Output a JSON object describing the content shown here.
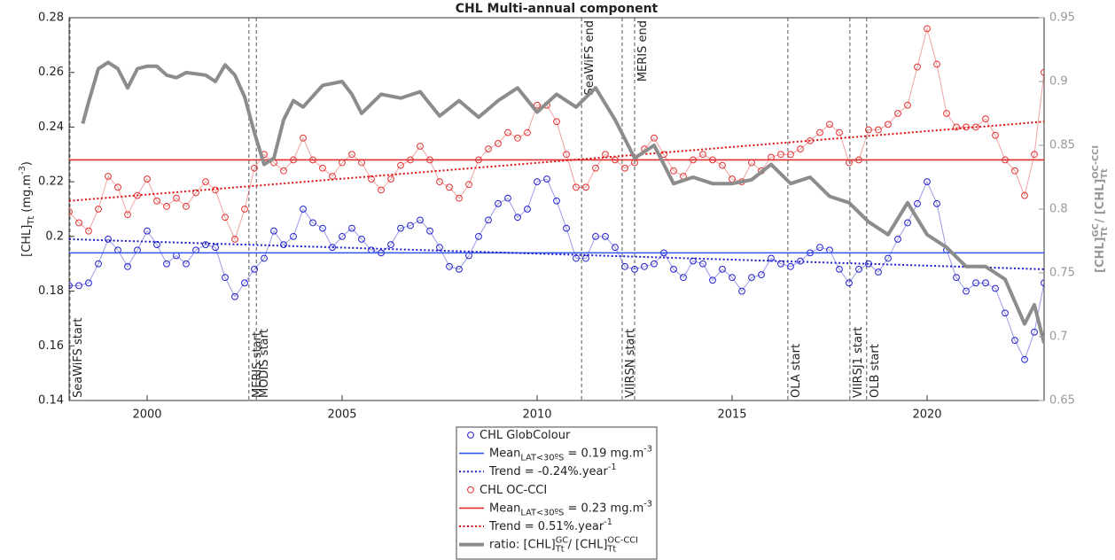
{
  "chart_data": {
    "type": "line",
    "title": "CHL Multi-annual component",
    "y_label": [
      {
        "text": "[CHL]"
      },
      {
        "text": "Tt",
        "pos": "sub"
      },
      {
        "text": " (mg.m"
      },
      {
        "text": "-3",
        "pos": "sup"
      },
      {
        "text": ")"
      }
    ],
    "y2_label": [
      {
        "text": "[CHL]"
      },
      {
        "text": "GC",
        "pos": "sup"
      },
      {
        "text": "Tt",
        "pos": "sub"
      },
      {
        "text": " / [CHL]"
      },
      {
        "text": "OC-CCI",
        "pos": "sup"
      },
      {
        "text": "Tt",
        "pos": "sub"
      }
    ],
    "xlim": [
      1998,
      2023
    ],
    "xticks": [
      2000,
      2005,
      2010,
      2015,
      2020
    ],
    "ylim": [
      0.14,
      0.28
    ],
    "yticks": [
      0.14,
      0.16,
      0.18,
      0.2,
      0.22,
      0.24,
      0.26,
      0.28
    ],
    "y2lim": [
      0.65,
      0.95
    ],
    "y2ticks": [
      0.65,
      0.7,
      0.75,
      0.8,
      0.85,
      0.9,
      0.95
    ],
    "y2_color": "#999999",
    "events": [
      {
        "label": "SeaWiFS start",
        "x": 1998.02,
        "position": "bottom"
      },
      {
        "label": "MERIS start",
        "x": 2002.61,
        "position": "bottom"
      },
      {
        "label": "MODIS start",
        "x": 2002.8,
        "position": "bottom"
      },
      {
        "label": "SeaWiFS end",
        "x": 2011.14,
        "position": "top"
      },
      {
        "label": "VIIRSN start",
        "x": 2012.18,
        "position": "bottom"
      },
      {
        "label": "MERIS end",
        "x": 2012.5,
        "position": "top"
      },
      {
        "label": "OLA start",
        "x": 2016.43,
        "position": "bottom"
      },
      {
        "label": "VIIRSJ1 start",
        "x": 2018.02,
        "position": "bottom"
      },
      {
        "label": "OLB start",
        "x": 2018.45,
        "position": "bottom"
      }
    ],
    "series": [
      {
        "name": "CHL GlobColour",
        "color": "#1f1fcc",
        "style": "markers",
        "axis": "y",
        "x": [
          1998,
          1998.25,
          1998.5,
          1998.75,
          1999,
          1999.25,
          1999.5,
          1999.75,
          2000,
          2000.25,
          2000.5,
          2000.75,
          2001,
          2001.25,
          2001.5,
          2001.75,
          2002,
          2002.25,
          2002.5,
          2002.75,
          2003,
          2003.25,
          2003.5,
          2003.75,
          2004,
          2004.25,
          2004.5,
          2004.75,
          2005,
          2005.25,
          2005.5,
          2005.75,
          2006,
          2006.25,
          2006.5,
          2006.75,
          2007,
          2007.25,
          2007.5,
          2007.75,
          2008,
          2008.25,
          2008.5,
          2008.75,
          2009,
          2009.25,
          2009.5,
          2009.75,
          2010,
          2010.25,
          2010.5,
          2010.75,
          2011,
          2011.25,
          2011.5,
          2011.75,
          2012,
          2012.25,
          2012.5,
          2012.75,
          2013,
          2013.25,
          2013.5,
          2013.75,
          2014,
          2014.25,
          2014.5,
          2014.75,
          2015,
          2015.25,
          2015.5,
          2015.75,
          2016,
          2016.25,
          2016.5,
          2016.75,
          2017,
          2017.25,
          2017.5,
          2017.75,
          2018,
          2018.25,
          2018.5,
          2018.75,
          2019,
          2019.25,
          2019.5,
          2019.75,
          2020,
          2020.25,
          2020.5,
          2020.75,
          2021,
          2021.25,
          2021.5,
          2021.75,
          2022,
          2022.25,
          2022.5,
          2022.75,
          2023
        ],
        "values": [
          0.182,
          0.182,
          0.183,
          0.19,
          0.199,
          0.195,
          0.189,
          0.195,
          0.202,
          0.197,
          0.19,
          0.193,
          0.19,
          0.195,
          0.197,
          0.196,
          0.185,
          0.178,
          0.183,
          0.188,
          0.192,
          0.202,
          0.197,
          0.2,
          0.21,
          0.205,
          0.203,
          0.196,
          0.2,
          0.203,
          0.199,
          0.195,
          0.194,
          0.197,
          0.203,
          0.204,
          0.206,
          0.202,
          0.196,
          0.189,
          0.188,
          0.193,
          0.2,
          0.206,
          0.212,
          0.214,
          0.207,
          0.21,
          0.22,
          0.221,
          0.213,
          0.203,
          0.192,
          0.192,
          0.2,
          0.2,
          0.196,
          0.189,
          0.188,
          0.189,
          0.19,
          0.194,
          0.188,
          0.185,
          0.191,
          0.19,
          0.184,
          0.188,
          0.185,
          0.18,
          0.185,
          0.186,
          0.192,
          0.19,
          0.189,
          0.191,
          0.194,
          0.196,
          0.195,
          0.188,
          0.183,
          0.188,
          0.19,
          0.187,
          0.192,
          0.199,
          0.205,
          0.212,
          0.22,
          0.212,
          0.195,
          0.185,
          0.18,
          0.183,
          0.183,
          0.181,
          0.172,
          0.162,
          0.155,
          0.165,
          0.183
        ]
      },
      {
        "name": [
          {
            "text": "Mean"
          },
          {
            "text": "LAT<30ºS",
            "pos": "sub"
          },
          {
            "text": " = 0.19 mg.m"
          },
          {
            "text": "-3",
            "pos": "sup"
          }
        ],
        "color": "#3355ee",
        "style": "solid",
        "axis": "y",
        "x": [
          1998,
          2023
        ],
        "values": [
          0.194,
          0.194
        ]
      },
      {
        "name": [
          {
            "text": "Trend = -0.24%.year"
          },
          {
            "text": "-1",
            "pos": "sup"
          }
        ],
        "color": "#1f1fcc",
        "style": "dotted",
        "axis": "y",
        "x": [
          1998,
          2023
        ],
        "values": [
          0.199,
          0.188
        ]
      },
      {
        "name": "CHL OC-CCI",
        "color": "#e03030",
        "style": "markers",
        "axis": "y",
        "x": [
          1998,
          1998.25,
          1998.5,
          1998.75,
          1999,
          1999.25,
          1999.5,
          1999.75,
          2000,
          2000.25,
          2000.5,
          2000.75,
          2001,
          2001.25,
          2001.5,
          2001.75,
          2002,
          2002.25,
          2002.5,
          2002.75,
          2003,
          2003.25,
          2003.5,
          2003.75,
          2004,
          2004.25,
          2004.5,
          2004.75,
          2005,
          2005.25,
          2005.5,
          2005.75,
          2006,
          2006.25,
          2006.5,
          2006.75,
          2007,
          2007.25,
          2007.5,
          2007.75,
          2008,
          2008.25,
          2008.5,
          2008.75,
          2009,
          2009.25,
          2009.5,
          2009.75,
          2010,
          2010.25,
          2010.5,
          2010.75,
          2011,
          2011.25,
          2011.5,
          2011.75,
          2012,
          2012.25,
          2012.5,
          2012.75,
          2013,
          2013.25,
          2013.5,
          2013.75,
          2014,
          2014.25,
          2014.5,
          2014.75,
          2015,
          2015.25,
          2015.5,
          2015.75,
          2016,
          2016.25,
          2016.5,
          2016.75,
          2017,
          2017.25,
          2017.5,
          2017.75,
          2018,
          2018.25,
          2018.5,
          2018.75,
          2019,
          2019.25,
          2019.5,
          2019.75,
          2020,
          2020.25,
          2020.5,
          2020.75,
          2021,
          2021.25,
          2021.5,
          2021.75,
          2022,
          2022.25,
          2022.5,
          2022.75,
          2023
        ],
        "values": [
          0.209,
          0.205,
          0.202,
          0.21,
          0.222,
          0.218,
          0.208,
          0.215,
          0.221,
          0.213,
          0.211,
          0.214,
          0.211,
          0.216,
          0.22,
          0.217,
          0.207,
          0.199,
          0.21,
          0.225,
          0.23,
          0.227,
          0.224,
          0.228,
          0.236,
          0.228,
          0.225,
          0.222,
          0.227,
          0.23,
          0.227,
          0.221,
          0.217,
          0.221,
          0.226,
          0.228,
          0.233,
          0.228,
          0.22,
          0.218,
          0.214,
          0.219,
          0.228,
          0.232,
          0.234,
          0.238,
          0.236,
          0.238,
          0.248,
          0.248,
          0.242,
          0.23,
          0.218,
          0.218,
          0.225,
          0.23,
          0.228,
          0.225,
          0.227,
          0.232,
          0.236,
          0.23,
          0.224,
          0.222,
          0.228,
          0.23,
          0.228,
          0.226,
          0.221,
          0.22,
          0.227,
          0.224,
          0.229,
          0.23,
          0.23,
          0.232,
          0.235,
          0.238,
          0.241,
          0.238,
          0.227,
          0.228,
          0.239,
          0.239,
          0.241,
          0.245,
          0.248,
          0.262,
          0.276,
          0.263,
          0.245,
          0.24,
          0.24,
          0.24,
          0.243,
          0.237,
          0.228,
          0.224,
          0.215,
          0.23,
          0.26
        ]
      },
      {
        "name": [
          {
            "text": "Mean"
          },
          {
            "text": "LAT<30ºS",
            "pos": "sub"
          },
          {
            "text": " = 0.23 mg.m"
          },
          {
            "text": "-3",
            "pos": "sup"
          }
        ],
        "color": "#e03030",
        "style": "solid",
        "axis": "y",
        "x": [
          1998,
          2023
        ],
        "values": [
          0.228,
          0.228
        ]
      },
      {
        "name": [
          {
            "text": "Trend = 0.51%.year"
          },
          {
            "text": "-1",
            "pos": "sup"
          }
        ],
        "color": "#e01010",
        "style": "dotted",
        "axis": "y",
        "x": [
          1998,
          2023
        ],
        "values": [
          0.213,
          0.242
        ]
      },
      {
        "name": [
          {
            "text": "ratio: [CHL]"
          },
          {
            "text": "GC",
            "pos": "sup"
          },
          {
            "text": "Tt",
            "pos": "sub"
          },
          {
            "text": " / [CHL]"
          },
          {
            "text": "OC-CCI",
            "pos": "sup"
          },
          {
            "text": "Tt",
            "pos": "sub"
          }
        ],
        "color": "#8c8c8c",
        "style": "thick",
        "axis": "y2",
        "x": [
          1998.35,
          1998.5,
          1998.75,
          1999,
          1999.25,
          1999.5,
          1999.75,
          2000,
          2000.25,
          2000.5,
          2000.75,
          2001,
          2001.5,
          2001.75,
          2002,
          2002.25,
          2002.5,
          2002.75,
          2003,
          2003.25,
          2003.5,
          2003.75,
          2004,
          2004.5,
          2005,
          2005.25,
          2005.5,
          2006,
          2006.5,
          2007,
          2007.5,
          2008,
          2008.5,
          2009,
          2009.5,
          2010,
          2010.5,
          2011,
          2011.5,
          2012,
          2012.5,
          2013,
          2013.5,
          2014,
          2014.5,
          2015,
          2015.5,
          2016,
          2016.5,
          2017,
          2017.5,
          2018,
          2018.5,
          2019,
          2019.5,
          2020,
          2020.5,
          2021,
          2021.5,
          2022,
          2022.5,
          2022.75,
          2023
        ],
        "values": [
          0.867,
          0.884,
          0.91,
          0.915,
          0.91,
          0.895,
          0.91,
          0.912,
          0.912,
          0.905,
          0.903,
          0.907,
          0.905,
          0.9,
          0.913,
          0.905,
          0.888,
          0.86,
          0.835,
          0.84,
          0.87,
          0.885,
          0.88,
          0.897,
          0.9,
          0.89,
          0.875,
          0.89,
          0.887,
          0.892,
          0.873,
          0.885,
          0.872,
          0.885,
          0.895,
          0.876,
          0.89,
          0.88,
          0.895,
          0.87,
          0.84,
          0.85,
          0.82,
          0.825,
          0.82,
          0.82,
          0.823,
          0.835,
          0.82,
          0.825,
          0.81,
          0.805,
          0.79,
          0.78,
          0.805,
          0.78,
          0.77,
          0.755,
          0.755,
          0.745,
          0.71,
          0.725,
          0.695
        ]
      }
    ]
  }
}
